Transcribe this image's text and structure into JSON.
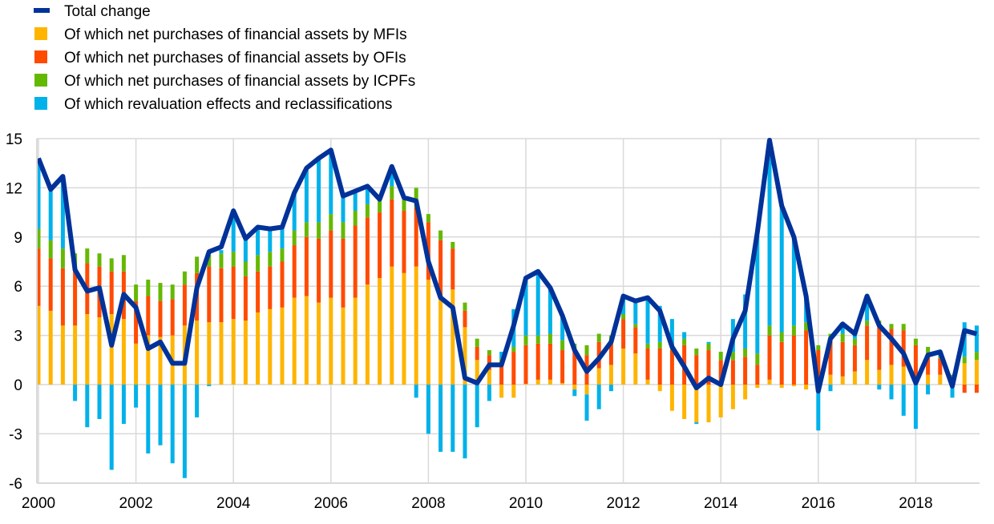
{
  "chart_data": {
    "type": "bar",
    "subtype": "stacked-bar-with-line",
    "title": "",
    "xlabel": "",
    "ylabel": "",
    "ylim": [
      -6,
      15
    ],
    "yticks": [
      15,
      12,
      9,
      6,
      3,
      0,
      -3,
      -6
    ],
    "xticks": [
      "2000",
      "2002",
      "2004",
      "2006",
      "2008",
      "2010",
      "2012",
      "2014",
      "2016",
      "2018"
    ],
    "grid": true,
    "legend_position": "top-left",
    "frequency": "quarterly",
    "start": "2000Q1",
    "end": "2019Q2",
    "series": [
      {
        "name": "Of which net purchases of financial assets by MFIs",
        "kind": "bar",
        "color": "#FFB400",
        "values": [
          4.8,
          4.5,
          3.6,
          3.6,
          4.3,
          4.1,
          4.3,
          4.0,
          2.5,
          3.0,
          2.9,
          3.0,
          3.6,
          3.9,
          3.8,
          3.8,
          4.0,
          3.9,
          4.4,
          4.6,
          4.7,
          5.3,
          5.4,
          5.0,
          5.3,
          4.7,
          5.3,
          6.1,
          6.5,
          7.2,
          6.8,
          7.2,
          6.4,
          5.2,
          5.8,
          3.5,
          1.5,
          0.9,
          -0.8,
          -0.8,
          0.05,
          0.3,
          0.3,
          0.1,
          -0.3,
          -0.6,
          1.0,
          1.2,
          2.2,
          1.9,
          0.3,
          -0.4,
          -1.6,
          -2.1,
          -2.3,
          -2.3,
          -2.0,
          -1.5,
          -0.9,
          -0.2,
          0.3,
          -0.2,
          -0.1,
          -0.3,
          0.0,
          0.6,
          0.5,
          0.8,
          1.5,
          0.9,
          1.2,
          1.1,
          0.0,
          0.6,
          0.6,
          0.0,
          1.3,
          1.5
        ]
      },
      {
        "name": "Of which net purchases of financial assets by OFIs",
        "kind": "bar",
        "color": "#FF4B00",
        "values": [
          3.5,
          3.2,
          3.5,
          3.4,
          3.1,
          3.1,
          2.6,
          2.9,
          2.6,
          2.4,
          2.2,
          2.2,
          2.5,
          2.9,
          3.4,
          3.3,
          3.2,
          2.7,
          2.5,
          2.6,
          2.8,
          3.2,
          3.6,
          3.9,
          4.1,
          4.2,
          4.4,
          4.1,
          4.0,
          4.1,
          3.8,
          3.6,
          3.5,
          3.6,
          2.5,
          1.0,
          0.8,
          0.9,
          1.1,
          2.0,
          2.35,
          2.2,
          2.2,
          2.0,
          2.1,
          1.8,
          1.6,
          1.3,
          1.8,
          1.6,
          1.9,
          2.2,
          2.1,
          2.4,
          1.8,
          2.1,
          1.5,
          1.5,
          1.7,
          1.2,
          2.7,
          2.6,
          3.0,
          3.3,
          2.1,
          2.3,
          2.1,
          1.6,
          2.1,
          2.6,
          2.2,
          2.2,
          2.4,
          1.3,
          1.0,
          0.5,
          -0.5,
          -0.5
        ]
      },
      {
        "name": "Of which net purchases of financial assets by ICPFs",
        "kind": "bar",
        "color": "#65B800",
        "values": [
          1.2,
          1.1,
          1.2,
          1.0,
          0.9,
          0.8,
          0.8,
          1.0,
          1.0,
          1.0,
          1.1,
          0.9,
          0.8,
          1.0,
          0.7,
          0.9,
          0.9,
          0.9,
          1.0,
          0.9,
          0.8,
          0.9,
          0.9,
          1.0,
          1.0,
          1.0,
          0.9,
          0.8,
          0.7,
          0.8,
          0.7,
          1.2,
          0.5,
          0.6,
          0.4,
          0.5,
          0.5,
          0.3,
          0.5,
          0.3,
          0.6,
          0.5,
          0.6,
          0.6,
          0.4,
          0.6,
          0.5,
          0.5,
          0.3,
          0.2,
          0.3,
          0.4,
          0.1,
          0.4,
          0.4,
          0.4,
          0.5,
          0.5,
          0.5,
          0.7,
          0.6,
          0.6,
          0.6,
          0.5,
          0.3,
          0.2,
          0.5,
          0.4,
          0.3,
          0.4,
          0.3,
          0.4,
          0.4,
          0.4,
          0.1,
          0.1,
          0.4,
          0.5
        ]
      },
      {
        "name": "Of which revaluation effects and reclassifications",
        "kind": "bar",
        "color": "#00B1EA",
        "values": [
          4.3,
          3.0,
          4.4,
          -1.0,
          -2.6,
          -2.1,
          -5.2,
          -2.4,
          -1.4,
          -4.2,
          -3.7,
          -4.8,
          -5.7,
          -2.0,
          -0.1,
          0.2,
          2.5,
          1.4,
          1.7,
          1.4,
          1.3,
          2.3,
          3.3,
          3.9,
          3.9,
          1.6,
          1.2,
          1.1,
          0.1,
          1.2,
          0.1,
          -0.8,
          -3.0,
          -4.1,
          -4.1,
          -4.5,
          -2.6,
          -1.0,
          0.4,
          2.3,
          3.6,
          4.0,
          2.8,
          1.5,
          -0.4,
          -1.6,
          -1.5,
          -0.4,
          1.1,
          1.5,
          2.8,
          2.2,
          1.8,
          0.4,
          -0.1,
          0.1,
          0.0,
          2.0,
          3.3,
          7.2,
          10.9,
          7.7,
          5.3,
          1.5,
          -2.8,
          -0.4,
          0.4,
          0.3,
          1.1,
          -0.3,
          -0.9,
          -1.9,
          -2.7,
          -0.6,
          0.2,
          -0.8,
          2.1,
          1.6
        ]
      },
      {
        "name": "Total change",
        "kind": "line",
        "color": "#003299",
        "values": [
          13.8,
          11.9,
          12.7,
          7.0,
          5.7,
          5.9,
          2.4,
          5.5,
          4.7,
          2.2,
          2.6,
          1.3,
          1.3,
          5.9,
          8.1,
          8.4,
          10.6,
          8.9,
          9.6,
          9.5,
          9.6,
          11.7,
          13.2,
          13.8,
          14.3,
          11.5,
          11.8,
          12.1,
          11.3,
          13.3,
          11.4,
          11.2,
          7.5,
          5.3,
          4.7,
          0.4,
          0.1,
          1.2,
          1.2,
          3.6,
          6.5,
          6.9,
          5.9,
          4.2,
          2.1,
          0.8,
          1.6,
          2.6,
          5.4,
          5.1,
          5.3,
          4.5,
          2.3,
          1.1,
          -0.2,
          0.4,
          0.0,
          2.8,
          4.5,
          9.3,
          14.9,
          10.9,
          9.0,
          5.4,
          -0.4,
          2.8,
          3.7,
          3.1,
          5.4,
          3.6,
          2.8,
          1.9,
          0.1,
          1.8,
          2.0,
          -0.1,
          3.3,
          3.1
        ]
      }
    ],
    "legend_order": [
      4,
      0,
      1,
      2,
      3
    ]
  }
}
